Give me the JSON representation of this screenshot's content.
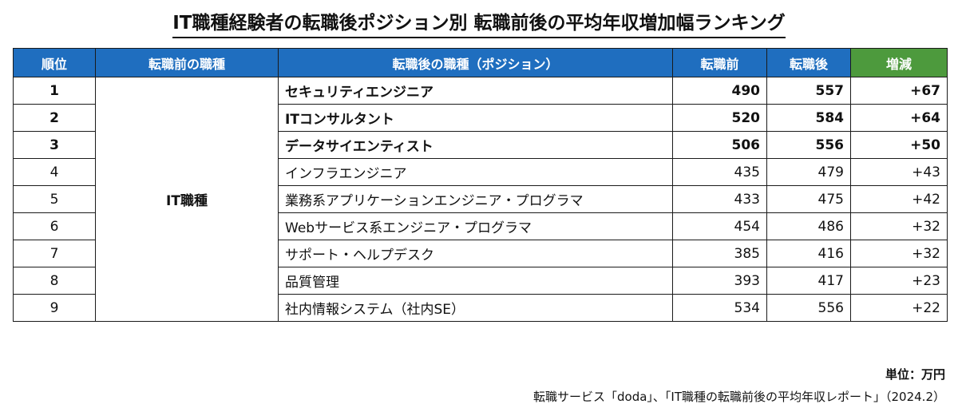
{
  "chart_data": {
    "type": "table",
    "title": "IT職種経験者の転職後ポジション別 転職前後の平均年収増加幅ランキング",
    "columns": [
      "順位",
      "転職前の職種",
      "転職後の職種（ポジション）",
      "転職前",
      "転職後",
      "増減"
    ],
    "previous_job": "IT職種",
    "rows": [
      {
        "rank": "1",
        "position": "セキュリティエンジニア",
        "before": 490,
        "after": 557,
        "diff": "+67",
        "highlight": true
      },
      {
        "rank": "2",
        "position": "ITコンサルタント",
        "before": 520,
        "after": 584,
        "diff": "+64",
        "highlight": true
      },
      {
        "rank": "3",
        "position": "データサイエンティスト",
        "before": 506,
        "after": 556,
        "diff": "+50",
        "highlight": true
      },
      {
        "rank": "4",
        "position": "インフラエンジニア",
        "before": 435,
        "after": 479,
        "diff": "+43",
        "highlight": false
      },
      {
        "rank": "5",
        "position": "業務系アプリケーションエンジニア・プログラマ",
        "before": 433,
        "after": 475,
        "diff": "+42",
        "highlight": false
      },
      {
        "rank": "6",
        "position": "Webサービス系エンジニア・プログラマ",
        "before": 454,
        "after": 486,
        "diff": "+32",
        "highlight": false
      },
      {
        "rank": "7",
        "position": "サポート・ヘルプデスク",
        "before": 385,
        "after": 416,
        "diff": "+32",
        "highlight": false
      },
      {
        "rank": "8",
        "position": "品質管理",
        "before": 393,
        "after": 417,
        "diff": "+23",
        "highlight": false
      },
      {
        "rank": "9",
        "position": "社内情報システム（社内SE）",
        "before": 534,
        "after": 556,
        "diff": "+22",
        "highlight": false
      }
    ],
    "unit": "単位：万円",
    "source": "転職サービス「doda」、「IT職種の転職前後の平均年収レポート」（2024.2）"
  },
  "colors": {
    "header": "#1f6ebf",
    "diff_header": "#4d9a3d",
    "header_text": "#ffffff"
  }
}
